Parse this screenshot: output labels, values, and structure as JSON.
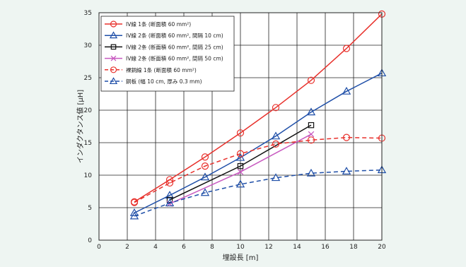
{
  "chart_data": {
    "type": "line",
    "xlabel": "埋設長 [m]",
    "ylabel": "インダクタンス値 [μH]",
    "xlim": [
      0,
      20
    ],
    "ylim": [
      0,
      35
    ],
    "x_ticks": [
      "0",
      "2",
      "4",
      "6",
      "8",
      "10",
      "12",
      "14",
      "16",
      "18",
      "20"
    ],
    "y_ticks": [
      "0",
      "5",
      "10",
      "15",
      "20",
      "25",
      "30",
      "35"
    ],
    "grid": true,
    "legend_position": "top-left",
    "series": [
      {
        "name": "IV線 1条 (断面積 60 mm²)",
        "color": "#e8312c",
        "dash": false,
        "marker": "circle",
        "x": [
          2.5,
          5,
          7.5,
          10,
          12.5,
          15,
          17.5,
          20
        ],
        "y": [
          5.9,
          9.3,
          12.8,
          16.5,
          20.4,
          24.6,
          29.5,
          34.8
        ]
      },
      {
        "name": "IV線 2条 (断面積 60 mm², 間隔 10 cm)",
        "color": "#1f4fa8",
        "dash": false,
        "marker": "triangle",
        "x": [
          2.5,
          5,
          7.5,
          10,
          12.5,
          15,
          17.5,
          20
        ],
        "y": [
          4.2,
          6.9,
          9.7,
          12.7,
          16.0,
          19.7,
          22.9,
          25.7
        ]
      },
      {
        "name": "IV線 2条 (断面積 60 mm², 間隔 25 cm)",
        "color": "#111111",
        "dash": false,
        "marker": "square",
        "x": [
          5,
          10,
          15
        ],
        "y": [
          6.2,
          11.4,
          17.7
        ]
      },
      {
        "name": "IV線 2条 (断面積 60 mm², 間隔 50 cm)",
        "color": "#c85ac0",
        "dash": false,
        "marker": "x",
        "x": [
          5,
          10,
          15
        ],
        "y": [
          5.6,
          10.5,
          16.3
        ]
      },
      {
        "name": "裸銅線 1条 (断面積 60 mm²)",
        "color": "#e8312c",
        "dash": true,
        "marker": "circle",
        "x": [
          2.5,
          5,
          7.5,
          10,
          12.5,
          15,
          17.5,
          20
        ],
        "y": [
          5.8,
          8.8,
          11.4,
          13.3,
          14.8,
          15.4,
          15.8,
          15.7
        ]
      },
      {
        "name": "銅板 (幅 10 cm, 厚み 0.3 mm)",
        "color": "#1f4fa8",
        "dash": true,
        "marker": "triangle",
        "x": [
          2.5,
          5,
          7.5,
          10,
          12.5,
          15,
          17.5,
          20
        ],
        "y": [
          3.7,
          5.7,
          7.3,
          8.6,
          9.6,
          10.3,
          10.6,
          10.8
        ]
      }
    ]
  }
}
